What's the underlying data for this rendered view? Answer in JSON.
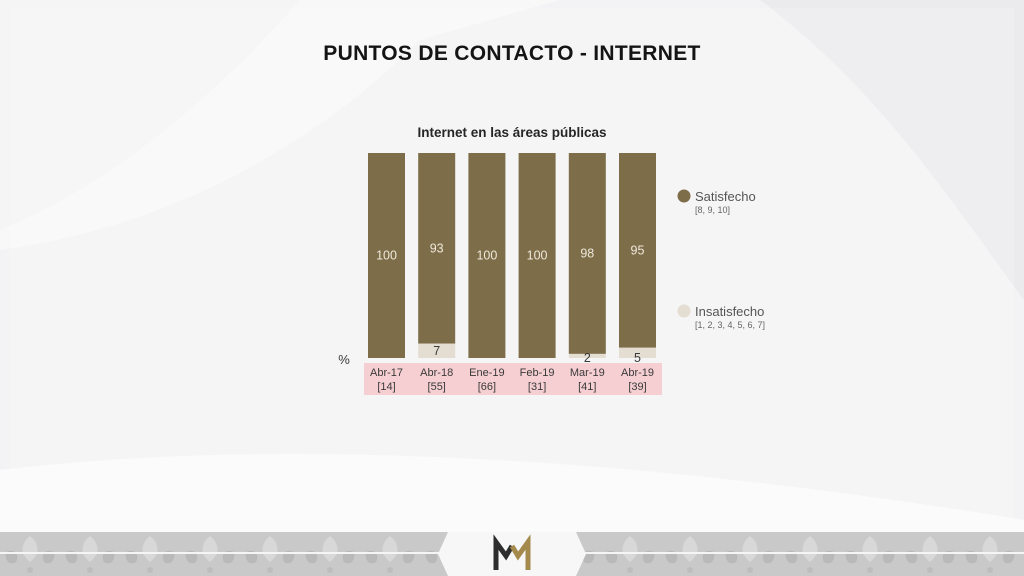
{
  "slide": {
    "title": "PUNTOS DE CONTACTO - INTERNET"
  },
  "colors": {
    "satisfecho": "#7d6d48",
    "insatisfecho": "#e4ddd2",
    "category_band": "#f6cfd2",
    "logo_dark": "#2d2d2d",
    "logo_gold": "#a58a4e"
  },
  "chart_data": {
    "type": "bar",
    "stacked": true,
    "title": "Internet en las áreas públicas",
    "unit_label": "%",
    "categories": [
      "Abr-17",
      "Abr-18",
      "Ene-19",
      "Feb-19",
      "Mar-19",
      "Abr-19"
    ],
    "bases": [
      "[14]",
      "[55]",
      "[66]",
      "[31]",
      "[41]",
      "[39]"
    ],
    "series": [
      {
        "name": "Satisfecho",
        "scale": "[8, 9, 10]",
        "values": [
          100,
          93,
          100,
          100,
          98,
          95
        ]
      },
      {
        "name": "Insatisfecho",
        "scale": "[1, 2, 3, 4, 5, 6, 7]",
        "values": [
          null,
          7,
          null,
          null,
          2,
          5
        ]
      }
    ],
    "ylim": [
      0,
      100
    ],
    "legend_position": "right"
  }
}
